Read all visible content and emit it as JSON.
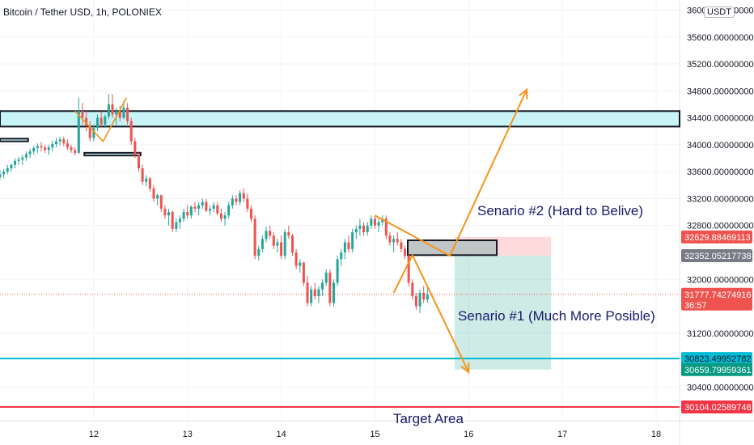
{
  "header": {
    "symbol_title": "Bitcoin / Tether USD, 1h, POLONIEX",
    "currency_badge": "USDT"
  },
  "annotations": {
    "scenario2": "Senario #2 (Hard to Belive)",
    "scenario1": "Senario #1 (Much More Posible)",
    "target": "Target Area"
  },
  "colors": {
    "up": "#26a69a",
    "down": "#ef5350",
    "arrow": "#f7931a",
    "zone_fill": "#c8f3f7",
    "zone_border": "#131722",
    "cyan_line": "#00bcd4",
    "red_line": "#f23645",
    "text_dark": "#1a1a6e",
    "grid": "#f0f3fa"
  },
  "chart_data": {
    "type": "candlestick",
    "x_ticks": [
      "12",
      "13",
      "14",
      "15",
      "16",
      "17",
      "18"
    ],
    "y_ticks": [
      "36000.00000000",
      "35600.00000000",
      "35200.00000000",
      "34800.00000000",
      "34400.00000000",
      "34000.00000000",
      "33600.00000000",
      "33200.00000000",
      "32800.00000000",
      "32000.00000000",
      "31200.00000000",
      "30400.00000000"
    ],
    "y_tick_values": [
      36000,
      35600,
      35200,
      34800,
      34400,
      34000,
      33600,
      33200,
      32800,
      32000,
      31200,
      30400
    ],
    "ylim": [
      29900,
      36150
    ],
    "xlim": [
      11.0,
      18.25
    ],
    "price_labels": [
      {
        "value": 32629.88469113,
        "text": "32629.88469113",
        "bg": "#ef5350",
        "fg": "#ffffff"
      },
      {
        "value": 32352.05217738,
        "text": "32352.05217738",
        "bg": "#787b86",
        "fg": "#ffffff"
      },
      {
        "value": 31777.74274916,
        "text": "31777.74274916",
        "sub": "36:57",
        "bg": "#ef5350",
        "fg": "#ffffff"
      },
      {
        "value": 30823.49952782,
        "text": "30823.49952782",
        "bg": "#00bcd4",
        "fg": "#131722"
      },
      {
        "value": 30659.79959361,
        "text": "30659.79959361",
        "bg": "#089981",
        "fg": "#ffffff"
      },
      {
        "value": 30104.02589748,
        "text": "30104.02589748",
        "bg": "#f23645",
        "fg": "#ffffff"
      }
    ],
    "horizontal_lines": [
      {
        "value": 30823.5,
        "color": "#00bcd4"
      },
      {
        "value": 30104.0,
        "color": "#f23645"
      }
    ],
    "current_price": 31777.74,
    "zones": [
      {
        "x0": 11.0,
        "x1": 18.25,
        "y0": 34270,
        "y1": 34500,
        "kind": "resistance"
      },
      {
        "x0": 11.0,
        "x1": 11.3,
        "y0": 34050,
        "y1": 34090,
        "kind": "box"
      },
      {
        "x0": 11.9,
        "x1": 12.5,
        "y0": 33840,
        "y1": 33880,
        "kind": "box"
      },
      {
        "x0": 15.35,
        "x1": 16.3,
        "y0": 32360,
        "y1": 32580,
        "kind": "entry"
      }
    ],
    "position": {
      "x0": 15.85,
      "x1": 16.88,
      "entry": 32350,
      "stop": 32630,
      "target": 30660
    },
    "arrows": [
      {
        "points": [
          [
            15.0,
            32950
          ],
          [
            15.8,
            32350
          ],
          [
            16.62,
            34820
          ]
        ]
      },
      {
        "points": [
          [
            15.2,
            31800
          ],
          [
            15.4,
            32360
          ],
          [
            16.0,
            30620
          ]
        ]
      }
    ],
    "candles": [
      [
        11.0,
        33520,
        33620,
        33480,
        33560
      ],
      [
        11.04,
        33560,
        33640,
        33500,
        33600
      ],
      [
        11.08,
        33600,
        33700,
        33560,
        33650
      ],
      [
        11.12,
        33650,
        33720,
        33600,
        33700
      ],
      [
        11.16,
        33700,
        33800,
        33650,
        33760
      ],
      [
        11.2,
        33760,
        33820,
        33700,
        33780
      ],
      [
        11.24,
        33780,
        33850,
        33700,
        33810
      ],
      [
        11.28,
        33810,
        33900,
        33760,
        33860
      ],
      [
        11.32,
        33860,
        33940,
        33800,
        33900
      ],
      [
        11.36,
        33900,
        33980,
        33850,
        33950
      ],
      [
        11.4,
        33950,
        34020,
        33880,
        33980
      ],
      [
        11.44,
        33980,
        34040,
        33900,
        33960
      ],
      [
        11.48,
        33960,
        34000,
        33880,
        33920
      ],
      [
        11.52,
        33920,
        34000,
        33850,
        33960
      ],
      [
        11.56,
        33960,
        34060,
        33900,
        34010
      ],
      [
        11.6,
        34010,
        34100,
        33960,
        34050
      ],
      [
        11.64,
        34050,
        34120,
        33990,
        34080
      ],
      [
        11.68,
        34080,
        34120,
        33980,
        34020
      ],
      [
        11.72,
        34020,
        34080,
        33920,
        33960
      ],
      [
        11.76,
        33960,
        34000,
        33880,
        33920
      ],
      [
        11.8,
        33920,
        33960,
        33840,
        33880
      ],
      [
        11.84,
        33880,
        34700,
        33860,
        34500
      ],
      [
        11.88,
        34500,
        34620,
        34300,
        34400
      ],
      [
        11.92,
        34400,
        34500,
        34200,
        34280
      ],
      [
        11.96,
        34280,
        34350,
        34050,
        34100
      ],
      [
        12.0,
        34100,
        34300,
        34050,
        34250
      ],
      [
        12.04,
        34250,
        34450,
        34200,
        34400
      ],
      [
        12.08,
        34400,
        34500,
        34250,
        34300
      ],
      [
        12.12,
        34300,
        34450,
        34250,
        34420
      ],
      [
        12.16,
        34420,
        34750,
        34380,
        34600
      ],
      [
        12.2,
        34600,
        34750,
        34400,
        34450
      ],
      [
        12.24,
        34450,
        34550,
        34300,
        34500
      ],
      [
        12.28,
        34500,
        34580,
        34350,
        34400
      ],
      [
        12.32,
        34400,
        34650,
        34380,
        34550
      ],
      [
        12.36,
        34550,
        34620,
        34300,
        34350
      ],
      [
        12.4,
        34350,
        34400,
        34000,
        34050
      ],
      [
        12.44,
        34050,
        34100,
        33800,
        33850
      ],
      [
        12.48,
        33850,
        33900,
        33600,
        33650
      ],
      [
        12.52,
        33650,
        33700,
        33400,
        33450
      ],
      [
        12.56,
        33450,
        33550,
        33380,
        33500
      ],
      [
        12.6,
        33500,
        33520,
        33300,
        33350
      ],
      [
        12.64,
        33350,
        33400,
        33150,
        33200
      ],
      [
        12.68,
        33200,
        33280,
        33100,
        33250
      ],
      [
        12.72,
        33250,
        33260,
        33000,
        33050
      ],
      [
        12.76,
        33050,
        33100,
        32900,
        32950
      ],
      [
        12.8,
        32950,
        33050,
        32800,
        33000
      ],
      [
        12.84,
        33000,
        33020,
        32700,
        32750
      ],
      [
        12.88,
        32750,
        32900,
        32700,
        32850
      ],
      [
        12.92,
        32850,
        32950,
        32750,
        32900
      ],
      [
        12.96,
        32900,
        33050,
        32850,
        33000
      ],
      [
        13.0,
        33000,
        33100,
        32900,
        32950
      ],
      [
        13.04,
        32950,
        33100,
        32900,
        33080
      ],
      [
        13.08,
        33080,
        33150,
        33000,
        33050
      ],
      [
        13.12,
        33050,
        33150,
        32950,
        33100
      ],
      [
        13.16,
        33100,
        33200,
        33050,
        33150
      ],
      [
        13.2,
        33150,
        33200,
        33000,
        33020
      ],
      [
        13.24,
        33020,
        33100,
        32950,
        33050
      ],
      [
        13.28,
        33050,
        33150,
        33000,
        33100
      ],
      [
        13.32,
        33100,
        33150,
        32950,
        32980
      ],
      [
        13.36,
        32980,
        33050,
        32850,
        32900
      ],
      [
        13.4,
        32900,
        33000,
        32800,
        32950
      ],
      [
        13.44,
        32950,
        33150,
        32900,
        33100
      ],
      [
        13.48,
        33100,
        33250,
        33050,
        33200
      ],
      [
        13.52,
        33200,
        33250,
        33100,
        33150
      ],
      [
        13.56,
        33150,
        33320,
        33100,
        33280
      ],
      [
        13.6,
        33280,
        33350,
        33150,
        33200
      ],
      [
        13.64,
        33200,
        33280,
        33000,
        33050
      ],
      [
        13.68,
        33050,
        33100,
        32850,
        32900
      ],
      [
        13.72,
        32900,
        32950,
        32300,
        32350
      ],
      [
        13.76,
        32350,
        32500,
        32280,
        32450
      ],
      [
        13.8,
        32450,
        32650,
        32400,
        32600
      ],
      [
        13.84,
        32600,
        32780,
        32550,
        32720
      ],
      [
        13.88,
        32720,
        32800,
        32600,
        32650
      ],
      [
        13.92,
        32650,
        32700,
        32450,
        32500
      ],
      [
        13.96,
        32500,
        32600,
        32400,
        32550
      ],
      [
        14.0,
        32550,
        32650,
        32300,
        32350
      ],
      [
        14.04,
        32350,
        32750,
        32300,
        32700
      ],
      [
        14.08,
        32700,
        32800,
        32600,
        32650
      ],
      [
        14.12,
        32650,
        32680,
        32350,
        32400
      ],
      [
        14.16,
        32400,
        32450,
        32150,
        32200
      ],
      [
        14.2,
        32200,
        32300,
        32100,
        32250
      ],
      [
        14.24,
        32250,
        32260,
        31900,
        31950
      ],
      [
        14.28,
        31950,
        32050,
        31600,
        31650
      ],
      [
        14.32,
        31650,
        31900,
        31600,
        31850
      ],
      [
        14.36,
        31850,
        31950,
        31700,
        31750
      ],
      [
        14.4,
        31750,
        31900,
        31650,
        31850
      ],
      [
        14.44,
        31850,
        32000,
        31750,
        31950
      ],
      [
        14.48,
        31950,
        32150,
        31900,
        32100
      ],
      [
        14.52,
        32100,
        32150,
        31600,
        31650
      ],
      [
        14.56,
        31650,
        32000,
        31600,
        31950
      ],
      [
        14.6,
        31950,
        32350,
        31900,
        32300
      ],
      [
        14.64,
        32300,
        32450,
        32200,
        32400
      ],
      [
        14.68,
        32400,
        32600,
        32300,
        32550
      ],
      [
        14.72,
        32550,
        32650,
        32400,
        32450
      ],
      [
        14.76,
        32450,
        32750,
        32400,
        32700
      ],
      [
        14.8,
        32700,
        32800,
        32600,
        32750
      ],
      [
        14.84,
        32750,
        32900,
        32650,
        32800
      ],
      [
        14.88,
        32800,
        32850,
        32650,
        32700
      ],
      [
        14.92,
        32700,
        32850,
        32650,
        32800
      ],
      [
        14.96,
        32800,
        32950,
        32750,
        32900
      ],
      [
        15.0,
        32900,
        32950,
        32750,
        32800
      ],
      [
        15.04,
        32800,
        32900,
        32700,
        32850
      ],
      [
        15.08,
        32850,
        32950,
        32800,
        32900
      ],
      [
        15.12,
        32900,
        32950,
        32600,
        32650
      ],
      [
        15.16,
        32650,
        32700,
        32500,
        32550
      ],
      [
        15.2,
        32550,
        32650,
        32400,
        32600
      ],
      [
        15.24,
        32600,
        32700,
        32500,
        32550
      ],
      [
        15.28,
        32550,
        32600,
        32400,
        32450
      ],
      [
        15.32,
        32450,
        32500,
        32300,
        32350
      ],
      [
        15.36,
        32350,
        32380,
        31900,
        31950
      ],
      [
        15.4,
        31950,
        32000,
        31700,
        31750
      ],
      [
        15.44,
        31750,
        31800,
        31550,
        31600
      ],
      [
        15.48,
        31600,
        31850,
        31500,
        31800
      ],
      [
        15.52,
        31800,
        31900,
        31650,
        31700
      ],
      [
        15.56,
        31700,
        31900,
        31650,
        31778
      ]
    ]
  }
}
